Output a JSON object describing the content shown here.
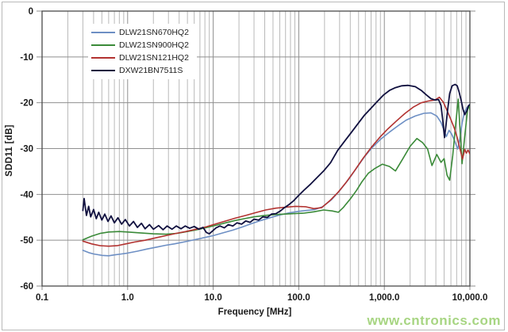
{
  "watermark": {
    "text": "www.cntronics.com",
    "color": "#a3d37c"
  },
  "chart_data": {
    "type": "line",
    "title": "",
    "xlabel": "Frequency [MHz]",
    "ylabel": "SDD11 [dB]",
    "x_scale": "log",
    "x_range": [
      0.1,
      10000
    ],
    "y_range": [
      -60,
      0
    ],
    "grid": {
      "horizontal_major": true,
      "vertical_major": true,
      "vertical_minor": true
    },
    "legend_position": "top-left-inside",
    "x_ticks": [
      {
        "value": 0.1,
        "label": "0.1"
      },
      {
        "value": 1,
        "label": "1.0"
      },
      {
        "value": 10,
        "label": "10.0"
      },
      {
        "value": 100,
        "label": "100.0"
      },
      {
        "value": 1000,
        "label": "1,000.0"
      },
      {
        "value": 10000,
        "label": "10,000.0"
      }
    ],
    "y_ticks": [
      {
        "value": 0,
        "label": "0"
      },
      {
        "value": -10,
        "label": "-10"
      },
      {
        "value": -20,
        "label": "-20"
      },
      {
        "value": -30,
        "label": "-30"
      },
      {
        "value": -40,
        "label": "-40"
      },
      {
        "value": -50,
        "label": "-50"
      },
      {
        "value": -60,
        "label": "-60"
      }
    ],
    "colors": {
      "major_grid": "#8f8f8f",
      "minor_grid": "#b9b9b9",
      "plot_border": "#4a4a4a",
      "tick_text": "#1a1a1a"
    },
    "series": [
      {
        "name": "DLW21SN670HQ2",
        "color": "#6d8fc4",
        "width": 1.6,
        "points": [
          [
            0.3,
            -52.2
          ],
          [
            0.35,
            -52.7
          ],
          [
            0.4,
            -53.0
          ],
          [
            0.5,
            -53.3
          ],
          [
            0.6,
            -53.4
          ],
          [
            0.7,
            -53.2
          ],
          [
            0.85,
            -53.0
          ],
          [
            1.0,
            -52.8
          ],
          [
            1.3,
            -52.4
          ],
          [
            1.7,
            -51.9
          ],
          [
            2.2,
            -51.5
          ],
          [
            2.8,
            -51.1
          ],
          [
            3.5,
            -50.8
          ],
          [
            4.5,
            -50.4
          ],
          [
            6.0,
            -49.9
          ],
          [
            8.0,
            -49.4
          ],
          [
            10,
            -49.0
          ],
          [
            13,
            -48.4
          ],
          [
            17,
            -47.8
          ],
          [
            22,
            -47.1
          ],
          [
            28,
            -46.4
          ],
          [
            36,
            -45.7
          ],
          [
            46,
            -45.1
          ],
          [
            60,
            -44.5
          ],
          [
            78,
            -44.0
          ],
          [
            100,
            -43.7
          ],
          [
            125,
            -43.5
          ],
          [
            155,
            -43.3
          ],
          [
            190,
            -42.7
          ],
          [
            240,
            -41.2
          ],
          [
            300,
            -39.2
          ],
          [
            380,
            -36.8
          ],
          [
            470,
            -34.3
          ],
          [
            580,
            -31.9
          ],
          [
            720,
            -29.8
          ],
          [
            900,
            -28.0
          ],
          [
            1150,
            -26.4
          ],
          [
            1450,
            -25.0
          ],
          [
            1800,
            -23.8
          ],
          [
            2300,
            -22.9
          ],
          [
            2900,
            -22.3
          ],
          [
            3500,
            -22.2
          ],
          [
            4100,
            -22.9
          ],
          [
            4600,
            -24.3
          ],
          [
            5000,
            -26.0
          ],
          [
            5300,
            -27.4
          ],
          [
            5700,
            -26.0
          ],
          [
            6100,
            -26.8
          ],
          [
            6600,
            -28.2
          ],
          [
            7200,
            -30.1
          ],
          [
            7600,
            -28.0
          ],
          [
            8100,
            -24.5
          ],
          [
            8600,
            -22.2
          ],
          [
            9100,
            -21.2
          ],
          [
            9600,
            -20.7
          ],
          [
            10000,
            -20.3
          ]
        ]
      },
      {
        "name": "DLW21SN900HQ2",
        "color": "#3a8a38",
        "width": 1.6,
        "points": [
          [
            0.3,
            -49.9
          ],
          [
            0.38,
            -49.1
          ],
          [
            0.48,
            -48.5
          ],
          [
            0.6,
            -48.2
          ],
          [
            0.8,
            -48.1
          ],
          [
            1.0,
            -48.2
          ],
          [
            1.4,
            -48.4
          ],
          [
            2.0,
            -48.6
          ],
          [
            2.8,
            -48.7
          ],
          [
            3.8,
            -48.5
          ],
          [
            5.0,
            -48.1
          ],
          [
            6.5,
            -47.7
          ],
          [
            8.5,
            -47.2
          ],
          [
            11,
            -46.7
          ],
          [
            14,
            -46.2
          ],
          [
            18,
            -45.7
          ],
          [
            23,
            -45.3
          ],
          [
            30,
            -44.9
          ],
          [
            40,
            -44.6
          ],
          [
            52,
            -44.4
          ],
          [
            68,
            -44.3
          ],
          [
            88,
            -44.2
          ],
          [
            115,
            -44.1
          ],
          [
            150,
            -43.8
          ],
          [
            195,
            -43.4
          ],
          [
            245,
            -43.6
          ],
          [
            290,
            -43.9
          ],
          [
            330,
            -42.9
          ],
          [
            400,
            -41.0
          ],
          [
            470,
            -39.2
          ],
          [
            550,
            -37.2
          ],
          [
            650,
            -35.4
          ],
          [
            780,
            -34.3
          ],
          [
            950,
            -33.4
          ],
          [
            1150,
            -33.9
          ],
          [
            1350,
            -34.9
          ],
          [
            1650,
            -32.2
          ],
          [
            2000,
            -29.5
          ],
          [
            2400,
            -27.8
          ],
          [
            2800,
            -28.7
          ],
          [
            3200,
            -30.1
          ],
          [
            3600,
            -33.7
          ],
          [
            4100,
            -31.3
          ],
          [
            4600,
            -33.0
          ],
          [
            5000,
            -32.2
          ],
          [
            5400,
            -35.8
          ],
          [
            5800,
            -36.9
          ],
          [
            6300,
            -31.5
          ],
          [
            6800,
            -25.0
          ],
          [
            7300,
            -19.2
          ],
          [
            7700,
            -26.5
          ],
          [
            8100,
            -33.3
          ],
          [
            8700,
            -27.3
          ],
          [
            9400,
            -21.5
          ],
          [
            9800,
            -20.6
          ],
          [
            10000,
            -21.6
          ]
        ]
      },
      {
        "name": "DLW21SN121HQ2",
        "color": "#b23230",
        "width": 1.6,
        "points": [
          [
            0.3,
            -50.2
          ],
          [
            0.38,
            -50.8
          ],
          [
            0.48,
            -51.2
          ],
          [
            0.6,
            -51.3
          ],
          [
            0.75,
            -51.2
          ],
          [
            0.95,
            -50.8
          ],
          [
            1.2,
            -50.4
          ],
          [
            1.6,
            -50.0
          ],
          [
            2.1,
            -49.5
          ],
          [
            2.8,
            -49.0
          ],
          [
            3.7,
            -48.5
          ],
          [
            4.8,
            -48.1
          ],
          [
            6.3,
            -47.6
          ],
          [
            8.2,
            -47.1
          ],
          [
            10.5,
            -46.5
          ],
          [
            14,
            -45.8
          ],
          [
            18,
            -45.2
          ],
          [
            24,
            -44.6
          ],
          [
            31,
            -44.0
          ],
          [
            41,
            -43.4
          ],
          [
            54,
            -43.0
          ],
          [
            70,
            -42.8
          ],
          [
            92,
            -42.6
          ],
          [
            120,
            -42.7
          ],
          [
            150,
            -43.1
          ],
          [
            185,
            -42.9
          ],
          [
            230,
            -41.4
          ],
          [
            290,
            -39.5
          ],
          [
            360,
            -37.3
          ],
          [
            450,
            -34.8
          ],
          [
            560,
            -32.2
          ],
          [
            700,
            -29.8
          ],
          [
            880,
            -27.6
          ],
          [
            1100,
            -25.7
          ],
          [
            1400,
            -23.9
          ],
          [
            1750,
            -22.3
          ],
          [
            2200,
            -20.9
          ],
          [
            2700,
            -20.0
          ],
          [
            3300,
            -19.6
          ],
          [
            3900,
            -19.4
          ],
          [
            4400,
            -18.8
          ],
          [
            4900,
            -19.9
          ],
          [
            5400,
            -21.7
          ],
          [
            6000,
            -23.7
          ],
          [
            6600,
            -25.6
          ],
          [
            7100,
            -27.6
          ],
          [
            7700,
            -30.3
          ],
          [
            8200,
            -32.3
          ],
          [
            8700,
            -30.2
          ],
          [
            9100,
            -31.0
          ],
          [
            9500,
            -30.3
          ],
          [
            10000,
            -31.2
          ]
        ]
      },
      {
        "name": "DXW21BN7511S",
        "color": "#10103f",
        "width": 1.8,
        "points": [
          [
            0.3,
            -43.5
          ],
          [
            0.31,
            -40.9
          ],
          [
            0.33,
            -44.6
          ],
          [
            0.35,
            -42.6
          ],
          [
            0.37,
            -44.9
          ],
          [
            0.4,
            -43.3
          ],
          [
            0.43,
            -45.3
          ],
          [
            0.46,
            -43.9
          ],
          [
            0.5,
            -45.6
          ],
          [
            0.54,
            -44.3
          ],
          [
            0.59,
            -45.9
          ],
          [
            0.64,
            -44.7
          ],
          [
            0.7,
            -46.2
          ],
          [
            0.77,
            -45.1
          ],
          [
            0.85,
            -46.5
          ],
          [
            0.94,
            -45.5
          ],
          [
            1.05,
            -46.9
          ],
          [
            1.17,
            -45.9
          ],
          [
            1.3,
            -47.2
          ],
          [
            1.45,
            -46.3
          ],
          [
            1.6,
            -47.5
          ],
          [
            1.8,
            -46.6
          ],
          [
            2.0,
            -47.6
          ],
          [
            2.3,
            -46.8
          ],
          [
            2.6,
            -47.7
          ],
          [
            2.9,
            -46.9
          ],
          [
            3.3,
            -47.6
          ],
          [
            3.7,
            -46.9
          ],
          [
            4.2,
            -47.5
          ],
          [
            4.7,
            -46.9
          ],
          [
            5.3,
            -47.4
          ],
          [
            6.0,
            -47.0
          ],
          [
            6.8,
            -47.6
          ],
          [
            7.6,
            -47.2
          ],
          [
            8.3,
            -48.3
          ],
          [
            9.0,
            -48.6
          ],
          [
            9.8,
            -48.0
          ],
          [
            10.8,
            -47.3
          ],
          [
            12,
            -46.9
          ],
          [
            13.5,
            -47.3
          ],
          [
            15,
            -46.6
          ],
          [
            17,
            -46.9
          ],
          [
            19,
            -46.2
          ],
          [
            21.5,
            -46.5
          ],
          [
            24,
            -45.8
          ],
          [
            27,
            -46.1
          ],
          [
            30,
            -45.4
          ],
          [
            34,
            -45.6
          ],
          [
            38,
            -44.9
          ],
          [
            43,
            -45.0
          ],
          [
            48,
            -44.3
          ],
          [
            54,
            -44.2
          ],
          [
            61,
            -43.6
          ],
          [
            68,
            -42.9
          ],
          [
            77,
            -42.2
          ],
          [
            87,
            -41.4
          ],
          [
            100,
            -40.2
          ],
          [
            115,
            -39.1
          ],
          [
            135,
            -37.9
          ],
          [
            160,
            -36.5
          ],
          [
            195,
            -34.9
          ],
          [
            235,
            -33.1
          ],
          [
            285,
            -30.4
          ],
          [
            340,
            -28.5
          ],
          [
            410,
            -26.5
          ],
          [
            490,
            -24.6
          ],
          [
            580,
            -22.8
          ],
          [
            690,
            -21.3
          ],
          [
            820,
            -19.8
          ],
          [
            980,
            -18.3
          ],
          [
            1150,
            -17.3
          ],
          [
            1350,
            -16.7
          ],
          [
            1600,
            -16.3
          ],
          [
            1900,
            -16.2
          ],
          [
            2300,
            -16.5
          ],
          [
            2700,
            -17.3
          ],
          [
            3100,
            -18.3
          ],
          [
            3500,
            -19.1
          ],
          [
            3900,
            -19.4
          ],
          [
            4300,
            -19.3
          ],
          [
            4600,
            -20.6
          ],
          [
            4800,
            -23.5
          ],
          [
            5050,
            -27.6
          ],
          [
            5250,
            -25.0
          ],
          [
            5500,
            -21.5
          ],
          [
            5800,
            -18.0
          ],
          [
            6200,
            -16.3
          ],
          [
            6700,
            -16.0
          ],
          [
            7100,
            -16.3
          ],
          [
            7500,
            -17.7
          ],
          [
            7900,
            -19.5
          ],
          [
            8300,
            -21.4
          ],
          [
            8700,
            -22.6
          ],
          [
            9200,
            -21.8
          ],
          [
            9600,
            -20.7
          ],
          [
            10000,
            -20.4
          ]
        ]
      }
    ]
  }
}
